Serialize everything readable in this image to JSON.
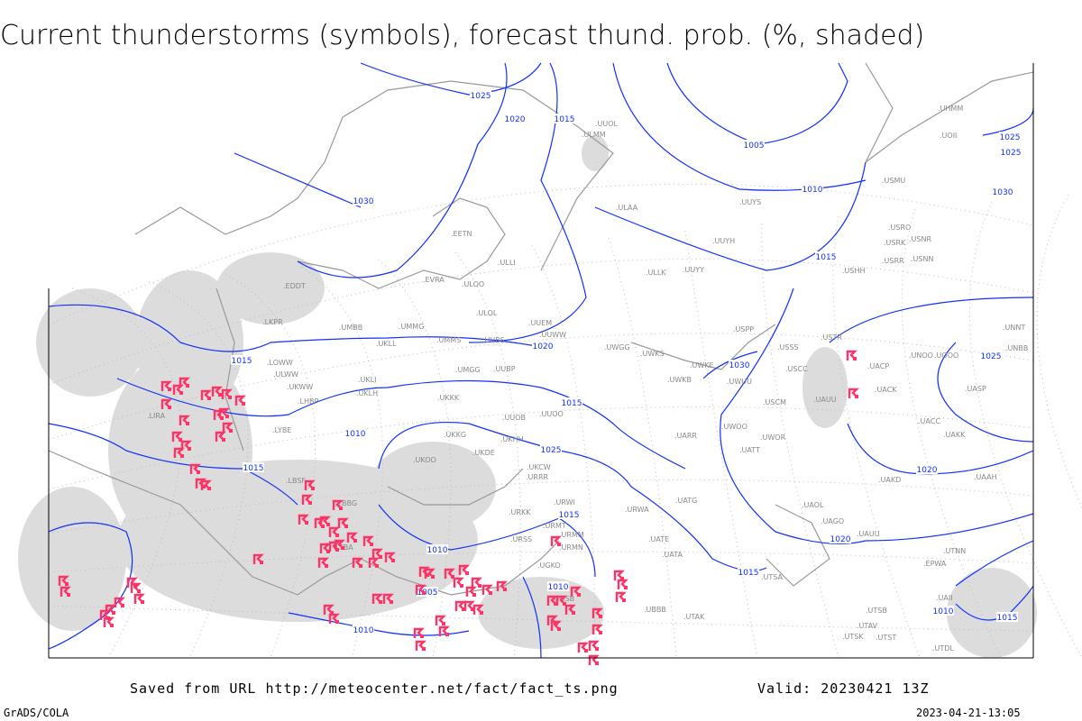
{
  "title": "Current thunderstorms (symbols), forecast thund. prob. (%, shaded)",
  "footer": {
    "source": "Saved from URL http://meteocenter.net/fact/fact_ts.png",
    "valid": "Valid: 20230421 13Z",
    "software": "GrADS/COLA",
    "timestamp": "2023-04-21-13:05"
  },
  "colors": {
    "isobar": "#1030ff",
    "thunderstorm_symbol": "#ff3366",
    "coastline": "#999999",
    "shading": "#d8d8d8"
  },
  "map": {
    "symbol": "thunderstorm-icon",
    "isobar_labels": [
      "1025",
      "1020",
      "1015",
      "1030",
      "1005",
      "1010",
      "1025",
      "1015",
      "1015",
      "1015",
      "1020",
      "1025",
      "1030",
      "1030",
      "1025",
      "1015",
      "1010",
      "1005",
      "1010",
      "1010",
      "1010",
      "1015",
      "1020",
      "1010",
      "1020",
      "1015",
      "1025",
      "1015"
    ],
    "stations": [
      "ULMM",
      "ULAA",
      "UUYS",
      "USMU",
      "UUYH",
      "USHH",
      "USRR",
      "USNN",
      "USRK",
      "USRO",
      "USNR",
      "ULLI",
      "ULOO",
      "ULLK",
      "UUYY",
      "EVRA",
      "EETN",
      "ULOL",
      "UUEM",
      "UUWW",
      "UWGG",
      "UWKS",
      "UWKE",
      "UWKB",
      "UWUU",
      "USPP",
      "USSS",
      "USCC",
      "USCM",
      "USTR",
      "UACP",
      "UNOO",
      "UACK",
      "UASP",
      "UAUU",
      "UWOO",
      "UWOR",
      "UATT",
      "UARR",
      "UMMG",
      "UMMS",
      "UUBS",
      "UMGG",
      "UUBP",
      "UKKK",
      "UUOO",
      "UUOB",
      "UKKG",
      "UKOO",
      "UKHH",
      "UKDE",
      "UKCW",
      "URRR",
      "URWI",
      "URWA",
      "URKK",
      "URMT",
      "URMM",
      "URMN",
      "URSS",
      "UGKO",
      "UGSB",
      "UBBB",
      "UTAK",
      "UATG",
      "UATE",
      "UATA",
      "UAOL",
      "UAGO",
      "UAUU",
      "UTNN",
      "UTSA",
      "UTSB",
      "UTAV",
      "UTSK",
      "UTST",
      "UTDL",
      "UAII",
      "EPWA",
      "UMBB",
      "UKLL",
      "UKLI",
      "UKLH",
      "UKWW",
      "LKPR",
      "LOWW",
      "LHBP",
      "LIRA",
      "LYBE",
      "LBSF",
      "LBBG",
      "LTBA",
      "EDDT",
      "ULWW",
      "UNNT",
      "UNBB",
      "UAKK",
      "UAKD",
      "UAAH",
      "UACC",
      "UOOO",
      "UOII",
      "UHMM",
      "UUOL"
    ]
  }
}
